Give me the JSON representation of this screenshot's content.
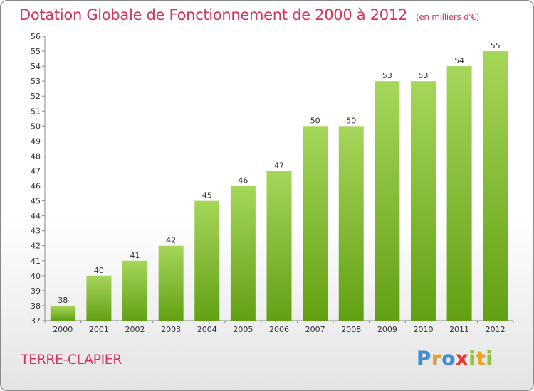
{
  "chart_data": {
    "type": "bar",
    "title": "Dotation Globale de Fonctionnement de 2000 à 2012",
    "subtitle": "(en milliers d'€)",
    "categories": [
      "2000",
      "2001",
      "2002",
      "2003",
      "2004",
      "2005",
      "2006",
      "2007",
      "2008",
      "2009",
      "2010",
      "2011",
      "2012"
    ],
    "values": [
      38,
      40,
      41,
      42,
      45,
      46,
      47,
      50,
      50,
      53,
      53,
      54,
      55
    ],
    "ylim": [
      37,
      56
    ],
    "yticks": [
      37,
      38,
      39,
      40,
      41,
      42,
      43,
      44,
      45,
      46,
      47,
      48,
      49,
      50,
      51,
      52,
      53,
      54,
      55,
      56
    ],
    "xlabel": "",
    "ylabel": "",
    "grid": false,
    "colors": {
      "bar_top": "#a6d65a",
      "bar_bottom": "#62a013",
      "title": "#d2365f",
      "axis": "#888888"
    }
  },
  "footer": {
    "commune": "TERRE-CLAPIER",
    "logo_letters": [
      "P",
      "r",
      "o",
      "x",
      "i",
      "t",
      "i"
    ],
    "logo_colors": [
      "#3a8fd6",
      "#f0a21e",
      "#3a8fd6",
      "#e8382e",
      "#8cc63f",
      "#f0a21e",
      "#8cc63f"
    ]
  }
}
